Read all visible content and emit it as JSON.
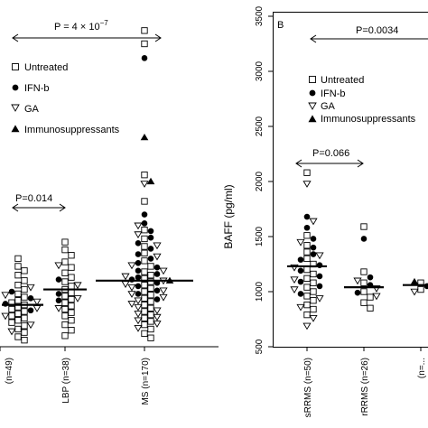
{
  "chart_data": [
    {
      "type": "scatter",
      "panel": "A",
      "title": "",
      "xlabel": "",
      "ylabel": "",
      "categories": [
        "(n=49)",
        "LBP (n=38)",
        "MS (n=170)"
      ],
      "ylim": [
        500,
        3500
      ],
      "legend": {
        "placement": "top-left",
        "entries": [
          {
            "label": "Untreated",
            "marker": "open-square"
          },
          {
            "label": "IFN-b",
            "marker": "filled-circle"
          },
          {
            "label": "GA",
            "marker": "open-triangle-down"
          },
          {
            "label": "Immunosuppressants",
            "marker": "filled-triangle-up"
          }
        ]
      },
      "medians": [
        880,
        1020,
        1100
      ],
      "annotations": [
        {
          "text": "P = 4 × 10",
          "sup": "−7"
        },
        {
          "text": "P=0.014"
        }
      ],
      "series": [
        {
          "name": "Untreated",
          "points": [
            {
              "g": 0,
              "v": 1300
            },
            {
              "g": 0,
              "v": 1230
            },
            {
              "g": 0,
              "v": 1190
            },
            {
              "g": 0,
              "v": 1150
            },
            {
              "g": 0,
              "v": 1100
            },
            {
              "g": 0,
              "v": 1060
            },
            {
              "g": 0,
              "v": 1020
            },
            {
              "g": 0,
              "v": 980
            },
            {
              "g": 0,
              "v": 950
            },
            {
              "g": 0,
              "v": 920
            },
            {
              "g": 0,
              "v": 900
            },
            {
              "g": 0,
              "v": 880
            },
            {
              "g": 0,
              "v": 860
            },
            {
              "g": 0,
              "v": 840
            },
            {
              "g": 0,
              "v": 820
            },
            {
              "g": 0,
              "v": 800
            },
            {
              "g": 0,
              "v": 780
            },
            {
              "g": 0,
              "v": 760
            },
            {
              "g": 0,
              "v": 740
            },
            {
              "g": 0,
              "v": 720
            },
            {
              "g": 0,
              "v": 690
            },
            {
              "g": 0,
              "v": 660
            },
            {
              "g": 0,
              "v": 630
            },
            {
              "g": 0,
              "v": 590
            },
            {
              "g": 0,
              "v": 560
            },
            {
              "g": 1,
              "v": 1450
            },
            {
              "g": 1,
              "v": 1380
            },
            {
              "g": 1,
              "v": 1330
            },
            {
              "g": 1,
              "v": 1270
            },
            {
              "g": 1,
              "v": 1220
            },
            {
              "g": 1,
              "v": 1170
            },
            {
              "g": 1,
              "v": 1130
            },
            {
              "g": 1,
              "v": 1090
            },
            {
              "g": 1,
              "v": 1050
            },
            {
              "g": 1,
              "v": 1020
            },
            {
              "g": 1,
              "v": 990
            },
            {
              "g": 1,
              "v": 960
            },
            {
              "g": 1,
              "v": 930
            },
            {
              "g": 1,
              "v": 900
            },
            {
              "g": 1,
              "v": 870
            },
            {
              "g": 1,
              "v": 840
            },
            {
              "g": 1,
              "v": 810
            },
            {
              "g": 1,
              "v": 780
            },
            {
              "g": 1,
              "v": 740
            },
            {
              "g": 1,
              "v": 700
            },
            {
              "g": 1,
              "v": 650
            },
            {
              "g": 1,
              "v": 600
            },
            {
              "g": 2,
              "v": 3250
            },
            {
              "g": 2,
              "v": 3370
            },
            {
              "g": 2,
              "v": 2060
            },
            {
              "g": 2,
              "v": 1820
            },
            {
              "g": 2,
              "v": 1560
            },
            {
              "g": 2,
              "v": 1480
            },
            {
              "g": 2,
              "v": 1410
            },
            {
              "g": 2,
              "v": 1350
            },
            {
              "g": 2,
              "v": 1280
            },
            {
              "g": 2,
              "v": 1230
            },
            {
              "g": 2,
              "v": 1180
            },
            {
              "g": 2,
              "v": 1150
            },
            {
              "g": 2,
              "v": 1120
            },
            {
              "g": 2,
              "v": 1090
            },
            {
              "g": 2,
              "v": 1060
            },
            {
              "g": 2,
              "v": 1030
            },
            {
              "g": 2,
              "v": 1000
            },
            {
              "g": 2,
              "v": 970
            },
            {
              "g": 2,
              "v": 940
            },
            {
              "g": 2,
              "v": 910
            },
            {
              "g": 2,
              "v": 880
            },
            {
              "g": 2,
              "v": 850
            },
            {
              "g": 2,
              "v": 820
            },
            {
              "g": 2,
              "v": 790
            },
            {
              "g": 2,
              "v": 760
            },
            {
              "g": 2,
              "v": 730
            },
            {
              "g": 2,
              "v": 700
            },
            {
              "g": 2,
              "v": 660
            },
            {
              "g": 2,
              "v": 620
            },
            {
              "g": 2,
              "v": 580
            }
          ]
        },
        {
          "name": "IFN-b",
          "points": [
            {
              "g": 0,
              "v": 1000
            },
            {
              "g": 0,
              "v": 940
            },
            {
              "g": 0,
              "v": 890
            },
            {
              "g": 0,
              "v": 830
            },
            {
              "g": 1,
              "v": 1110
            },
            {
              "g": 1,
              "v": 980
            },
            {
              "g": 1,
              "v": 920
            },
            {
              "g": 2,
              "v": 3120
            },
            {
              "g": 2,
              "v": 1700
            },
            {
              "g": 2,
              "v": 1620
            },
            {
              "g": 2,
              "v": 1550
            },
            {
              "g": 2,
              "v": 1490
            },
            {
              "g": 2,
              "v": 1440
            },
            {
              "g": 2,
              "v": 1390
            },
            {
              "g": 2,
              "v": 1340
            },
            {
              "g": 2,
              "v": 1300
            },
            {
              "g": 2,
              "v": 1260
            },
            {
              "g": 2,
              "v": 1220
            },
            {
              "g": 2,
              "v": 1190
            },
            {
              "g": 2,
              "v": 1160
            },
            {
              "g": 2,
              "v": 1130
            },
            {
              "g": 2,
              "v": 1110
            },
            {
              "g": 2,
              "v": 1080
            },
            {
              "g": 2,
              "v": 1050
            },
            {
              "g": 2,
              "v": 1010
            },
            {
              "g": 2,
              "v": 980
            },
            {
              "g": 2,
              "v": 930
            }
          ]
        },
        {
          "name": "GA",
          "points": [
            {
              "g": 0,
              "v": 1040
            },
            {
              "g": 0,
              "v": 970
            },
            {
              "g": 0,
              "v": 910
            },
            {
              "g": 0,
              "v": 850
            },
            {
              "g": 0,
              "v": 780
            },
            {
              "g": 0,
              "v": 700
            },
            {
              "g": 0,
              "v": 640
            },
            {
              "g": 1,
              "v": 1240
            },
            {
              "g": 1,
              "v": 1060
            },
            {
              "g": 1,
              "v": 940
            },
            {
              "g": 1,
              "v": 850
            },
            {
              "g": 2,
              "v": 1980
            },
            {
              "g": 2,
              "v": 1600
            },
            {
              "g": 2,
              "v": 1520
            },
            {
              "g": 2,
              "v": 1420
            },
            {
              "g": 2,
              "v": 1320
            },
            {
              "g": 2,
              "v": 1240
            },
            {
              "g": 2,
              "v": 1190
            },
            {
              "g": 2,
              "v": 1140
            },
            {
              "g": 2,
              "v": 1100
            },
            {
              "g": 2,
              "v": 1070
            },
            {
              "g": 2,
              "v": 1040
            },
            {
              "g": 2,
              "v": 1010
            },
            {
              "g": 2,
              "v": 980
            },
            {
              "g": 2,
              "v": 950
            },
            {
              "g": 2,
              "v": 920
            },
            {
              "g": 2,
              "v": 890
            },
            {
              "g": 2,
              "v": 860
            },
            {
              "g": 2,
              "v": 830
            },
            {
              "g": 2,
              "v": 800
            },
            {
              "g": 2,
              "v": 770
            },
            {
              "g": 2,
              "v": 740
            },
            {
              "g": 2,
              "v": 710
            },
            {
              "g": 2,
              "v": 670
            }
          ]
        },
        {
          "name": "Immunosuppressants",
          "points": [
            {
              "g": 2,
              "v": 2400
            },
            {
              "g": 2,
              "v": 2000
            },
            {
              "g": 2,
              "v": 1100
            }
          ]
        }
      ]
    },
    {
      "type": "scatter",
      "panel": "B",
      "title": "",
      "panel_label": "B",
      "xlabel": "",
      "ylabel": "BAFF (pg/ml)",
      "categories": [
        "sRRMS (n=50)",
        "rRRMS (n=26)",
        "(n=..."
      ],
      "ylim": [
        500,
        3500
      ],
      "yticks": [
        500,
        1000,
        1500,
        2000,
        2500,
        3000,
        3500
      ],
      "legend": {
        "placement": "top-right",
        "entries": [
          {
            "label": "Untreated",
            "marker": "open-square"
          },
          {
            "label": "IFN-b",
            "marker": "filled-circle"
          },
          {
            "label": "GA",
            "marker": "open-triangle-down"
          },
          {
            "label": "Immunosuppressants",
            "marker": "filled-triangle-up"
          }
        ]
      },
      "medians": [
        1230,
        1040,
        1060
      ],
      "annotations": [
        {
          "text": "P=0.0034"
        },
        {
          "text": "P=0.066"
        }
      ],
      "series": [
        {
          "name": "Untreated",
          "points": [
            {
              "g": 0,
              "v": 2080
            },
            {
              "g": 0,
              "v": 1510
            },
            {
              "g": 0,
              "v": 1420
            },
            {
              "g": 0,
              "v": 1360
            },
            {
              "g": 0,
              "v": 1300
            },
            {
              "g": 0,
              "v": 1250
            },
            {
              "g": 0,
              "v": 1200
            },
            {
              "g": 0,
              "v": 1160
            },
            {
              "g": 0,
              "v": 1120
            },
            {
              "g": 0,
              "v": 1080
            },
            {
              "g": 0,
              "v": 1040
            },
            {
              "g": 0,
              "v": 1000
            },
            {
              "g": 0,
              "v": 960
            },
            {
              "g": 0,
              "v": 920
            },
            {
              "g": 0,
              "v": 880
            },
            {
              "g": 0,
              "v": 840
            },
            {
              "g": 0,
              "v": 790
            },
            {
              "g": 1,
              "v": 1590
            },
            {
              "g": 1,
              "v": 1180
            },
            {
              "g": 1,
              "v": 1080
            },
            {
              "g": 1,
              "v": 1000
            },
            {
              "g": 1,
              "v": 950
            },
            {
              "g": 1,
              "v": 900
            },
            {
              "g": 1,
              "v": 850
            },
            {
              "g": 2,
              "v": 1080
            },
            {
              "g": 2,
              "v": 1020
            }
          ]
        },
        {
          "name": "IFN-b",
          "points": [
            {
              "g": 0,
              "v": 1680
            },
            {
              "g": 0,
              "v": 1580
            },
            {
              "g": 0,
              "v": 1480
            },
            {
              "g": 0,
              "v": 1400
            },
            {
              "g": 0,
              "v": 1340
            },
            {
              "g": 0,
              "v": 1290
            },
            {
              "g": 0,
              "v": 1240
            },
            {
              "g": 0,
              "v": 1190
            },
            {
              "g": 0,
              "v": 1140
            },
            {
              "g": 0,
              "v": 1090
            },
            {
              "g": 0,
              "v": 1050
            },
            {
              "g": 0,
              "v": 980
            },
            {
              "g": 1,
              "v": 1480
            },
            {
              "g": 1,
              "v": 1130
            },
            {
              "g": 1,
              "v": 1060
            },
            {
              "g": 1,
              "v": 990
            },
            {
              "g": 2,
              "v": 1050
            }
          ]
        },
        {
          "name": "GA",
          "points": [
            {
              "g": 0,
              "v": 1980
            },
            {
              "g": 0,
              "v": 1640
            },
            {
              "g": 0,
              "v": 1450
            },
            {
              "g": 0,
              "v": 1330
            },
            {
              "g": 0,
              "v": 1220
            },
            {
              "g": 0,
              "v": 1110
            },
            {
              "g": 0,
              "v": 1020
            },
            {
              "g": 0,
              "v": 940
            },
            {
              "g": 0,
              "v": 860
            },
            {
              "g": 0,
              "v": 760
            },
            {
              "g": 0,
              "v": 690
            },
            {
              "g": 1,
              "v": 1100
            },
            {
              "g": 1,
              "v": 1030
            },
            {
              "g": 1,
              "v": 960
            },
            {
              "g": 2,
              "v": 1000
            }
          ]
        },
        {
          "name": "Immunosuppressants",
          "points": [
            {
              "g": 2,
              "v": 1090
            }
          ]
        }
      ]
    }
  ]
}
